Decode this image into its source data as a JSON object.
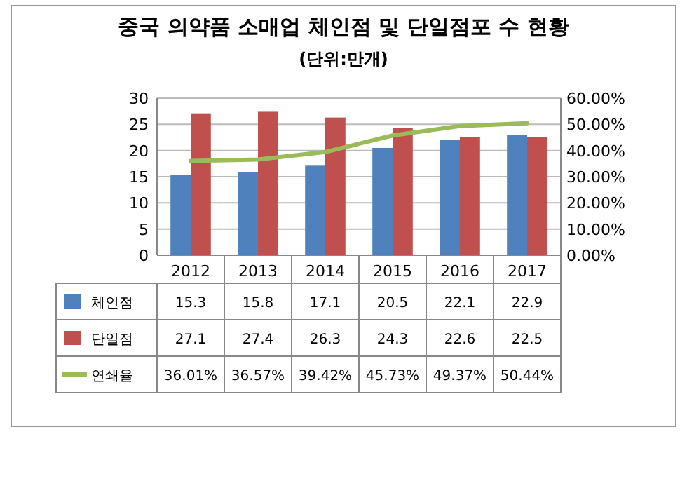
{
  "chart_data": {
    "type": "bar",
    "title": "중국 의약품 소매업 체인점 및 단일점포 수  현황",
    "subtitle": "(단위:만개)",
    "categories": [
      "2012",
      "2013",
      "2014",
      "2015",
      "2016",
      "2017"
    ],
    "series": [
      {
        "name": "체인점",
        "color": "#4f81bd",
        "values": [
          15.3,
          15.8,
          17.1,
          20.5,
          22.1,
          22.9
        ],
        "value_labels": [
          "15.3",
          "15.8",
          "17.1",
          "20.5",
          "22.1",
          "22.9"
        ]
      },
      {
        "name": "단일점",
        "color": "#c0504d",
        "values": [
          27.1,
          27.4,
          26.3,
          24.3,
          22.6,
          22.5
        ],
        "value_labels": [
          "27.1",
          "27.4",
          "26.3",
          "24.3",
          "22.6",
          "22.5"
        ]
      },
      {
        "name": "연쇄율",
        "color": "#9bbb59",
        "type": "line",
        "axis": "y2",
        "values": [
          36.01,
          36.57,
          39.42,
          45.73,
          49.37,
          50.44
        ],
        "value_labels": [
          "36.01%",
          "36.57%",
          "39.42%",
          "45.73%",
          "49.37%",
          "50.44%"
        ]
      }
    ],
    "ylim": [
      0,
      30
    ],
    "yticks": [
      0,
      5,
      10,
      15,
      20,
      25,
      30
    ],
    "y2lim": [
      0,
      60
    ],
    "y2ticks": [
      {
        "value": 0,
        "label": "0.00%"
      },
      {
        "value": 10,
        "label": "10.00%"
      },
      {
        "value": 20,
        "label": "20.00%"
      },
      {
        "value": 30,
        "label": "30.00%"
      },
      {
        "value": 40,
        "label": "40.00%"
      },
      {
        "value": 50,
        "label": "50.00%"
      },
      {
        "value": 60,
        "label": "60.00%"
      }
    ],
    "grid": "y",
    "legend": "bottom",
    "marker": "none",
    "line_style": "solid"
  }
}
